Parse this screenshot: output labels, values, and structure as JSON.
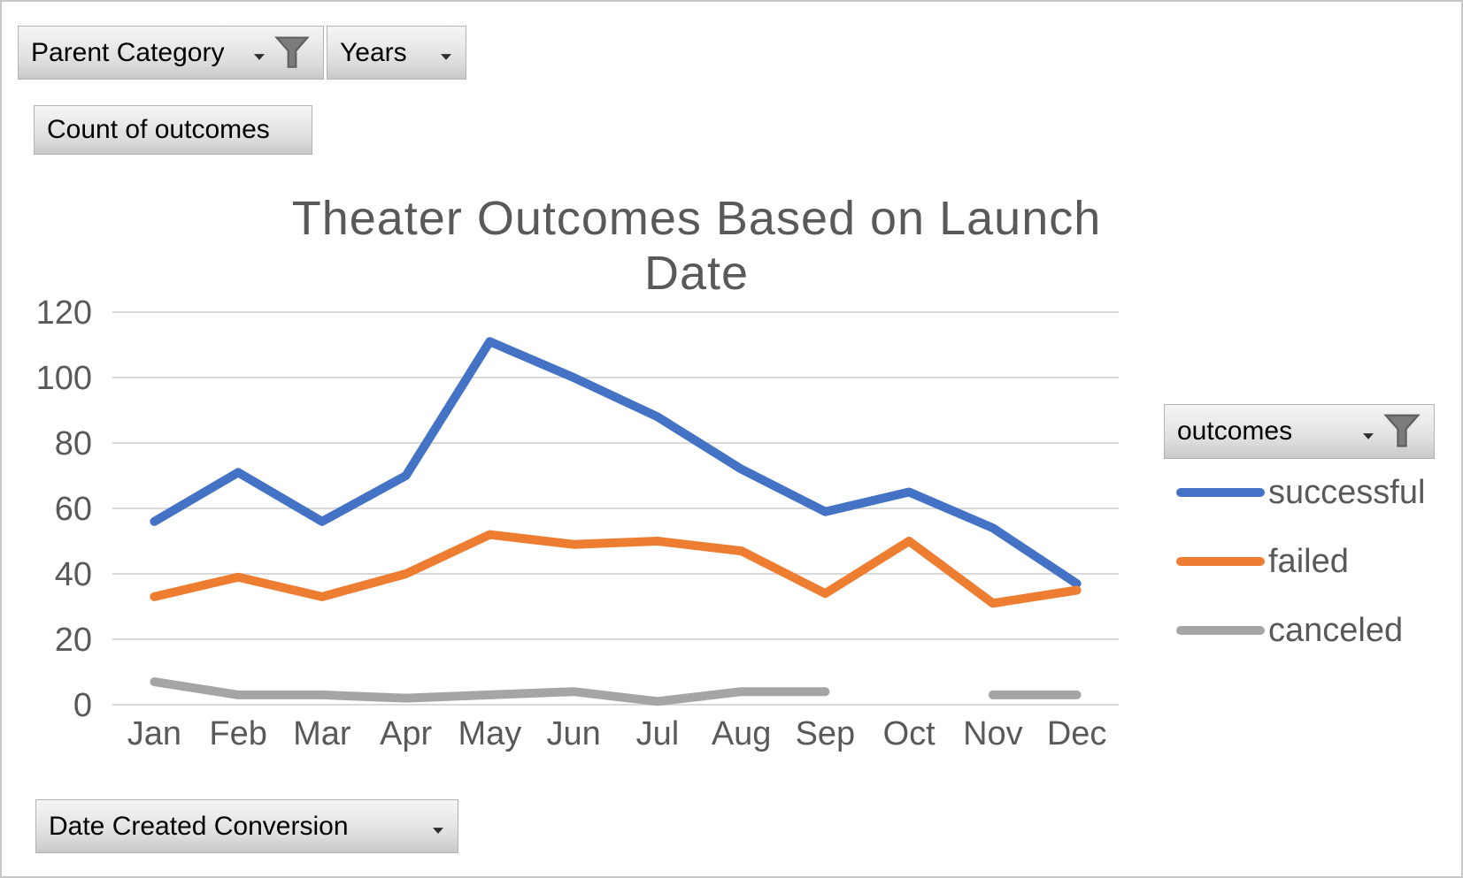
{
  "field_buttons": {
    "parent_category": {
      "label": "Parent Category",
      "has_dropdown": true,
      "has_filter_icon": true
    },
    "years": {
      "label": "Years",
      "has_dropdown": true,
      "has_filter_icon": false
    },
    "count_of_outcomes": {
      "label": "Count of outcomes",
      "has_dropdown": false,
      "has_filter_icon": false
    },
    "outcomes": {
      "label": "outcomes",
      "has_dropdown": true,
      "has_filter_icon": true
    },
    "date_created_conversion": {
      "label": "Date Created Conversion",
      "has_dropdown": true,
      "has_filter_icon": false
    }
  },
  "colors": {
    "series_successful": "#4472C4",
    "series_failed": "#ED7D31",
    "series_canceled": "#A5A5A5",
    "grid": "#D9D9D9",
    "axis_text": "#595959",
    "title_text": "#595959",
    "button_text": "#000000",
    "filter_icon": "#7b7b7b"
  },
  "chart_data": {
    "type": "line",
    "title": "Theater Outcomes Based on Launch Date",
    "categories": [
      "Jan",
      "Feb",
      "Mar",
      "Apr",
      "May",
      "Jun",
      "Jul",
      "Aug",
      "Sep",
      "Oct",
      "Nov",
      "Dec"
    ],
    "series": [
      {
        "name": "successful",
        "color": "#4472C4",
        "values": [
          56,
          71,
          56,
          70,
          111,
          100,
          88,
          72,
          59,
          65,
          54,
          37
        ]
      },
      {
        "name": "failed",
        "color": "#ED7D31",
        "values": [
          33,
          39,
          33,
          40,
          52,
          49,
          50,
          47,
          34,
          50,
          31,
          35
        ]
      },
      {
        "name": "canceled",
        "color": "#A5A5A5",
        "values": [
          7,
          3,
          3,
          2,
          3,
          4,
          1,
          4,
          4,
          null,
          3,
          3
        ]
      }
    ],
    "xlabel": "",
    "ylabel": "",
    "ylim": [
      0,
      120
    ],
    "ytick_step": 20,
    "grid": true,
    "legend_position": "right",
    "legend_title": "outcomes"
  }
}
